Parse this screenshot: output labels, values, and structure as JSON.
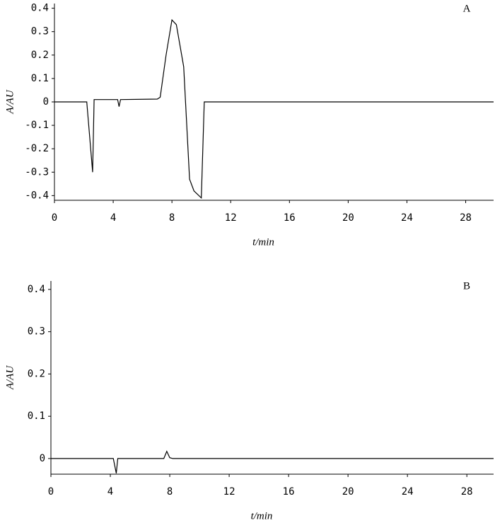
{
  "chart_data": [
    {
      "type": "line",
      "annotation": "A",
      "x_label": "t/min",
      "y_label": "A/AU",
      "x": [
        0,
        2.2,
        2.6,
        2.7,
        4.3,
        4.4,
        4.5,
        7.0,
        7.2,
        7.6,
        8.0,
        8.3,
        8.8,
        9.2,
        9.5,
        10.0,
        10.2,
        12,
        29.9
      ],
      "values": [
        0,
        0,
        -0.3,
        0.01,
        0.01,
        -0.02,
        0.01,
        0.012,
        0.02,
        0.2,
        0.35,
        0.33,
        0.15,
        -0.33,
        -0.38,
        -0.41,
        0.0,
        0,
        0
      ],
      "color": "#000000",
      "xlim": [
        0,
        29.9
      ],
      "xticks": [
        0,
        4,
        8,
        12,
        16,
        20,
        24,
        28
      ],
      "ylim": [
        -0.42,
        0.42
      ],
      "yticks": [
        0.4,
        0.3,
        0.2,
        0.1,
        0,
        -0.1,
        -0.2,
        -0.3,
        -0.4
      ]
    },
    {
      "type": "line",
      "annotation": "B",
      "x_label": "t/min",
      "y_label": "A/AU",
      "x": [
        0,
        4.2,
        4.4,
        4.5,
        7.6,
        7.8,
        8.0,
        8.2,
        29.8
      ],
      "values": [
        0,
        0,
        -0.035,
        0,
        0,
        0.017,
        0.002,
        0,
        0
      ],
      "color": "#000000",
      "xlim": [
        0,
        29.8
      ],
      "xticks": [
        0,
        4,
        8,
        12,
        16,
        20,
        24,
        28
      ],
      "ylim": [
        -0.037,
        0.42
      ],
      "yticks": [
        0.4,
        0.3,
        0.2,
        0.1,
        0
      ]
    }
  ]
}
